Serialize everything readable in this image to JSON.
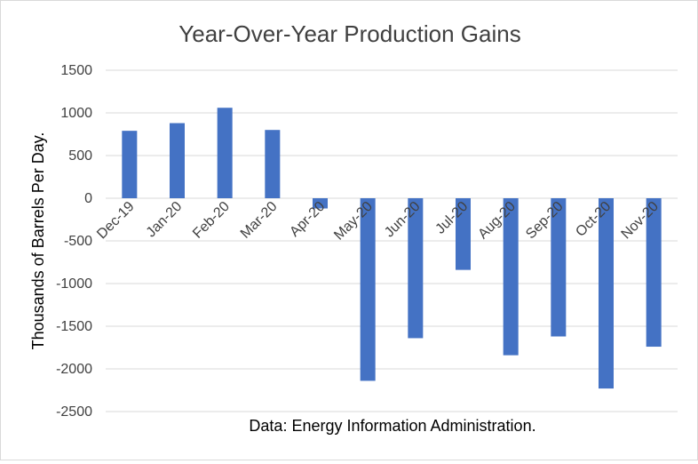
{
  "chart_data": {
    "type": "bar",
    "title": "Year-Over-Year Production Gains",
    "ylabel": "Thousands of Barrels Per Day.",
    "xlabel": "",
    "note": "Data: Energy Information Administration.",
    "categories": [
      "Dec-19",
      "Jan-20",
      "Feb-20",
      "Mar-20",
      "Apr-20",
      "May-20",
      "Jun-20",
      "Jul-20",
      "Aug-20",
      "Sep-20",
      "Oct-20",
      "Nov-20"
    ],
    "values": [
      790,
      880,
      1060,
      800,
      -120,
      -2140,
      -1640,
      -840,
      -1840,
      -1620,
      -2230,
      -1740
    ],
    "ylim": [
      -2500,
      1500
    ],
    "yticks": [
      1500,
      1000,
      500,
      0,
      -500,
      -1000,
      -1500,
      -2000,
      -2500
    ],
    "grid": true,
    "legend": "none",
    "bar_color": "#4472c4",
    "grid_color": "#d9d9d9"
  }
}
